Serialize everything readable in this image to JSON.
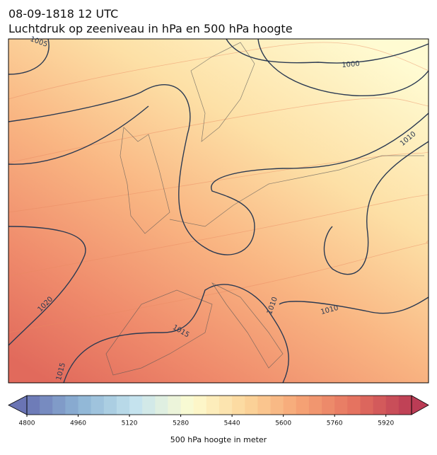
{
  "header": {
    "title": "08-09-1818 12 UTC",
    "subtitle": "Luchtdruk op zeeniveau in hPa en 500 hPa hoogte"
  },
  "map": {
    "contour_labels": [
      "1005",
      "1000",
      "1010",
      "1020",
      "1015",
      "1010",
      "1010",
      "1015"
    ]
  },
  "colorbar": {
    "label": "500 hPa hoogte in meter",
    "lim": [
      4800,
      6000
    ],
    "ticks": [
      4800,
      4960,
      5120,
      5280,
      5440,
      5600,
      5760,
      5920
    ],
    "level_step": 40,
    "extend": "both",
    "colormap": [
      "#6a74b4",
      "#8fb6d6",
      "#c6e4ee",
      "#fdfcd0",
      "#fcd59a",
      "#f5a274",
      "#e4705f",
      "#bb3c55"
    ]
  }
}
